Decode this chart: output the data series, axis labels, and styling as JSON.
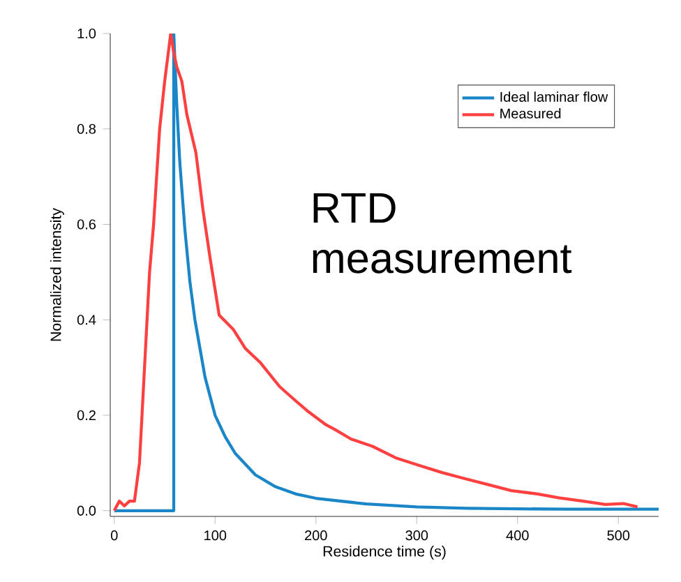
{
  "chart_data": {
    "type": "line",
    "xlabel": "Residence time (s)",
    "ylabel": "Normalized intensity",
    "annotations": [
      "RTD measurement"
    ],
    "xlim": [
      -4,
      540
    ],
    "ylim": [
      -0.012,
      1.0
    ],
    "xticks": [
      0,
      100,
      200,
      300,
      400,
      500
    ],
    "yticks": [
      {
        "value": 0,
        "label": "0.0"
      },
      0.2,
      0.4,
      0.6,
      0.8,
      {
        "value": 1,
        "label": "1.0"
      }
    ],
    "grid": false,
    "legend": "top right",
    "line_style": "solid",
    "series": [
      {
        "name": "Ideal laminar flow",
        "color": "#1a86c8",
        "x": [
          0,
          59,
          59,
          62,
          65,
          70,
          75,
          80,
          90,
          100,
          110,
          120,
          140,
          160,
          180,
          200,
          250,
          300,
          350,
          400,
          450,
          500,
          540
        ],
        "values": [
          0,
          0,
          1.0,
          0.85,
          0.73,
          0.59,
          0.48,
          0.4,
          0.28,
          0.2,
          0.155,
          0.12,
          0.075,
          0.05,
          0.035,
          0.026,
          0.014,
          0.008,
          0.005,
          0.004,
          0.003,
          0.003,
          0.003
        ]
      },
      {
        "name": "Measured",
        "color": "#ff4040",
        "x": [
          0,
          5,
          10,
          15,
          20,
          25,
          30,
          35,
          39,
          45,
          50,
          56,
          59,
          62,
          67,
          72,
          81,
          88,
          95,
          104,
          118,
          130,
          145,
          164,
          180,
          191,
          210,
          219,
          235,
          256,
          280,
          302,
          325,
          348,
          370,
          394,
          420,
          441,
          465,
          487,
          505,
          519
        ],
        "values": [
          0,
          0.02,
          0.01,
          0.02,
          0.02,
          0.1,
          0.3,
          0.5,
          0.6,
          0.8,
          0.9,
          1.0,
          0.96,
          0.93,
          0.9,
          0.83,
          0.75,
          0.63,
          0.53,
          0.41,
          0.38,
          0.34,
          0.31,
          0.26,
          0.23,
          0.21,
          0.18,
          0.17,
          0.15,
          0.135,
          0.11,
          0.095,
          0.08,
          0.067,
          0.055,
          0.042,
          0.035,
          0.027,
          0.02,
          0.013,
          0.015,
          0.008
        ]
      }
    ]
  }
}
